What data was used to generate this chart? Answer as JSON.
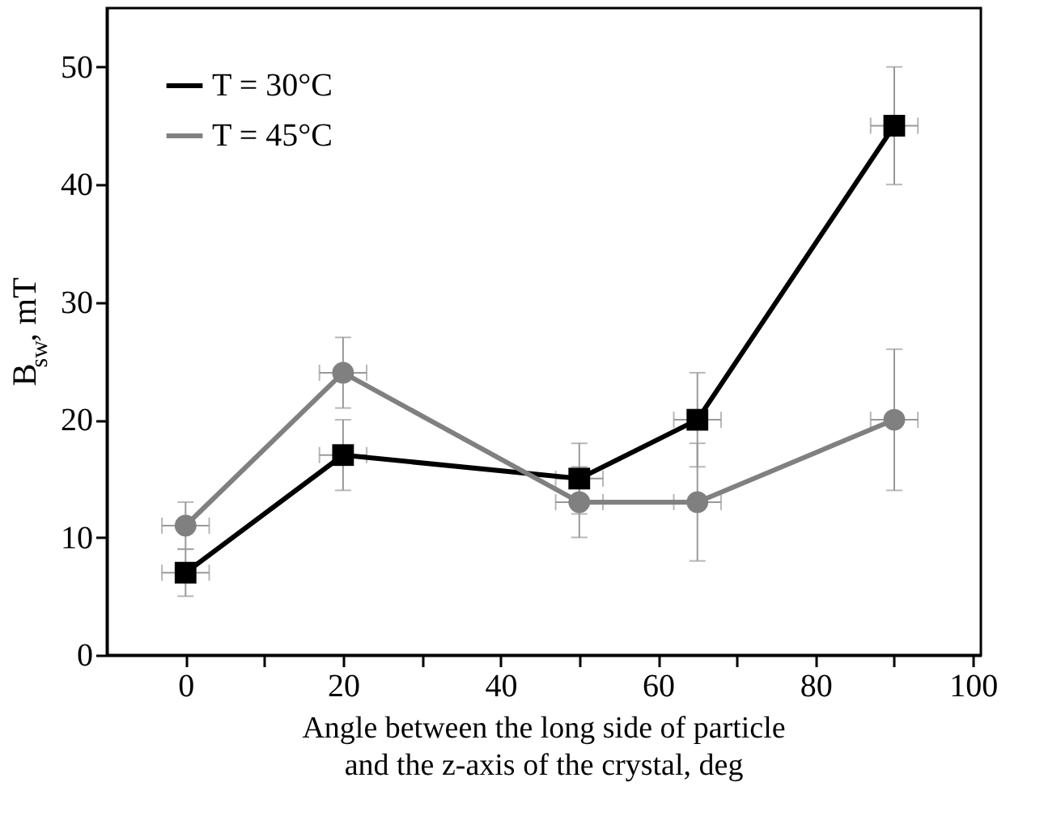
{
  "chart_data": {
    "type": "line",
    "xlabel": "Angle between the long side of particle\nand the z-axis of the crystal, deg",
    "ylabel": "B$_{sw}$, mT",
    "x": [
      0,
      20,
      50,
      65,
      90
    ],
    "series": [
      {
        "name": "T = 30°C",
        "color": "#000000",
        "marker": "square",
        "values": [
          7,
          17,
          15,
          20,
          45
        ],
        "errors": [
          2,
          3,
          3,
          4,
          5
        ],
        "xerrors": [
          3,
          3,
          3,
          3,
          3
        ]
      },
      {
        "name": "T = 45°C",
        "color": "#808080",
        "marker": "circle",
        "values": [
          11,
          24,
          13,
          13,
          20
        ],
        "errors": [
          2,
          3,
          3,
          5,
          6
        ],
        "xerrors": [
          3,
          3,
          3,
          3,
          3
        ]
      }
    ],
    "xlim": [
      -10,
      101
    ],
    "ylim": [
      0,
      55
    ],
    "xticks": [
      0,
      {
        "value": 10,
        "label": null
      },
      20,
      {
        "value": 30,
        "label": null
      },
      40,
      {
        "value": 50,
        "label": null
      },
      60,
      {
        "value": 70,
        "label": null
      },
      80,
      {
        "value": 90,
        "label": null
      },
      100
    ],
    "yticks": [
      0,
      10,
      20,
      30,
      40,
      50
    ],
    "grid": false,
    "legend": "top left",
    "line_style": "solid"
  }
}
